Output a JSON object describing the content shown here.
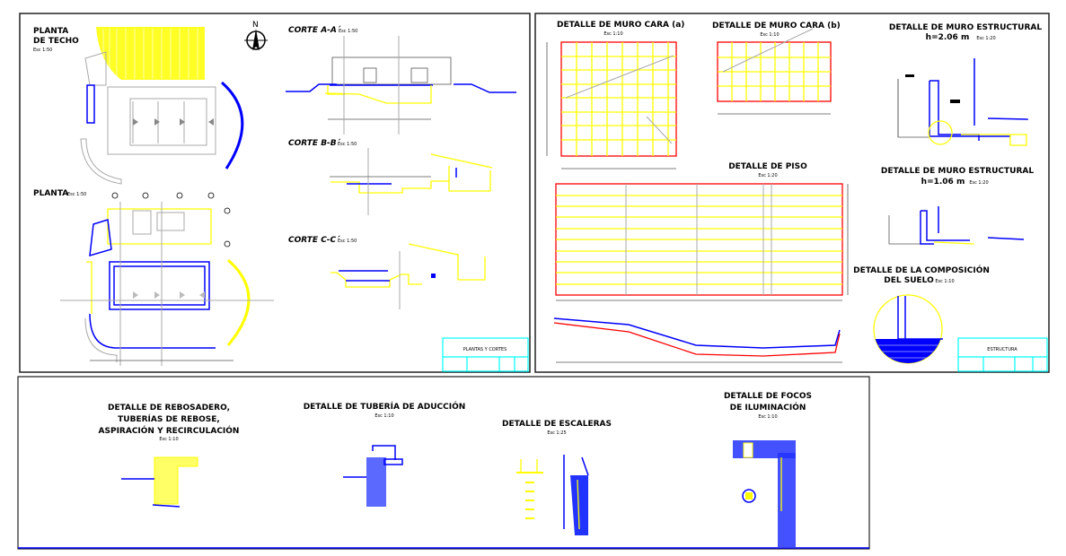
{
  "colors": {
    "frame": "#000000",
    "wall": "#ffff00",
    "water": "#0000ff",
    "reinforcement": "#ff0000",
    "dimension": "#a8a8a8",
    "title_block": "#00ffff"
  },
  "sheet1": {
    "roof_plan": {
      "title_line1": "PLANTA",
      "title_line2": "DE TECHO",
      "scale": "Esc 1:50"
    },
    "north": "N",
    "section_a": {
      "title": "CORTE A-A´",
      "scale": "Esc 1:50"
    },
    "section_b": {
      "title": "CORTE B-B´",
      "scale": "Esc 1:50"
    },
    "section_c": {
      "title": "CORTE C-C´",
      "scale": "Esc 1:50"
    },
    "floor_plan": {
      "title": "PLANTA",
      "scale": "Esc 1:50"
    },
    "title_block": "PLANTAS Y CORTES"
  },
  "sheet2": {
    "wall_face_a": {
      "title": "DETALLE DE MURO CARA (a)",
      "scale": "Esc 1:10"
    },
    "wall_face_b": {
      "title": "DETALLE DE MURO CARA (b)",
      "scale": "Esc 1:10"
    },
    "struct_wall_1": {
      "title": "DETALLE DE MURO ESTRUCTURAL",
      "height": "h=2.06 m",
      "scale": "Esc 1:20"
    },
    "floor": {
      "title": "DETALLE DE PISO",
      "scale": "Esc 1:20"
    },
    "struct_wall_2": {
      "title": "DETALLE DE MURO ESTRUCTURAL",
      "height": "h=1.06 m",
      "scale": "Esc 1:20"
    },
    "soil": {
      "title_line1": "DETALLE DE LA COMPOSICIÓN",
      "title_line2": "DEL SUELO",
      "scale": "Esc 1:10"
    },
    "title_block": "ESTRUCTURA"
  },
  "sheet3": {
    "overflow": {
      "line1": "DETALLE DE REBOSADERO,",
      "line2": "TUBERÍAS DE REBOSE,",
      "line3": "ASPIRACIÓN Y RECIRCULACIÓN",
      "scale": "Esc 1:10"
    },
    "inlet": {
      "title": "DETALLE DE TUBERÍA DE ADUCCIÓN",
      "scale": "Esc 1:10"
    },
    "stairs": {
      "title": "DETALLE DE ESCALERAS",
      "scale": "Esc 1:25"
    },
    "lights": {
      "line1": "DETALLE DE FOCOS",
      "line2": "DE ILUMINACIÓN",
      "scale": "Esc 1:10"
    }
  }
}
